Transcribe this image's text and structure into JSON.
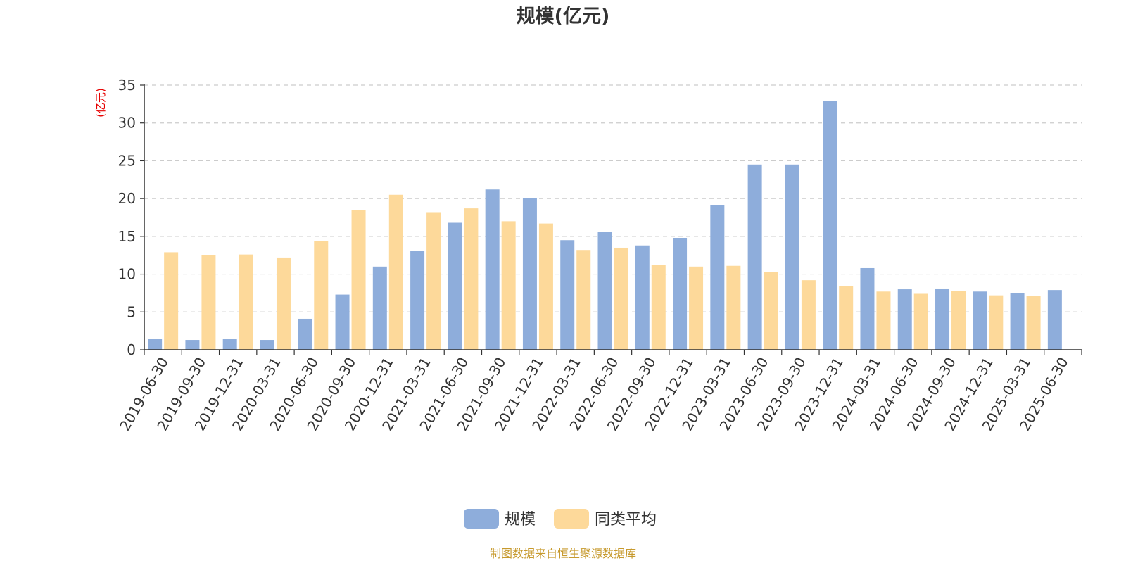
{
  "chart_data": {
    "type": "bar",
    "title": "规模(亿元)",
    "ylabel": "(亿元)",
    "ylim": [
      0,
      35
    ],
    "yticks": [
      0,
      5,
      10,
      15,
      20,
      25,
      30,
      35
    ],
    "grid": true,
    "legend_position": "bottom",
    "categories": [
      "2019-06-30",
      "2019-09-30",
      "2019-12-31",
      "2020-03-31",
      "2020-06-30",
      "2020-09-30",
      "2020-12-31",
      "2021-03-31",
      "2021-06-30",
      "2021-09-30",
      "2021-12-31",
      "2022-03-31",
      "2022-06-30",
      "2022-09-30",
      "2022-12-31",
      "2023-03-31",
      "2023-06-30",
      "2023-09-30",
      "2023-12-31",
      "2024-03-31",
      "2024-06-30",
      "2024-09-30",
      "2024-12-31",
      "2025-03-31",
      "2025-06-30"
    ],
    "series": [
      {
        "name": "规模",
        "color": "#8eaddb",
        "values": [
          1.4,
          1.3,
          1.4,
          1.3,
          4.1,
          7.3,
          11.0,
          13.1,
          16.8,
          21.2,
          20.1,
          14.5,
          15.6,
          13.8,
          14.8,
          19.1,
          24.5,
          24.5,
          32.9,
          10.8,
          8.0,
          8.1,
          7.7,
          7.5,
          7.9
        ]
      },
      {
        "name": "同类平均",
        "color": "#fdd99a",
        "values": [
          12.9,
          12.5,
          12.6,
          12.2,
          14.4,
          18.5,
          20.5,
          18.2,
          18.7,
          17.0,
          16.7,
          13.2,
          13.5,
          11.2,
          11.0,
          11.1,
          10.3,
          9.2,
          8.4,
          7.7,
          7.4,
          7.8,
          7.2,
          7.1,
          null
        ]
      }
    ]
  },
  "source_note": "制图数据来自恒生聚源数据库"
}
